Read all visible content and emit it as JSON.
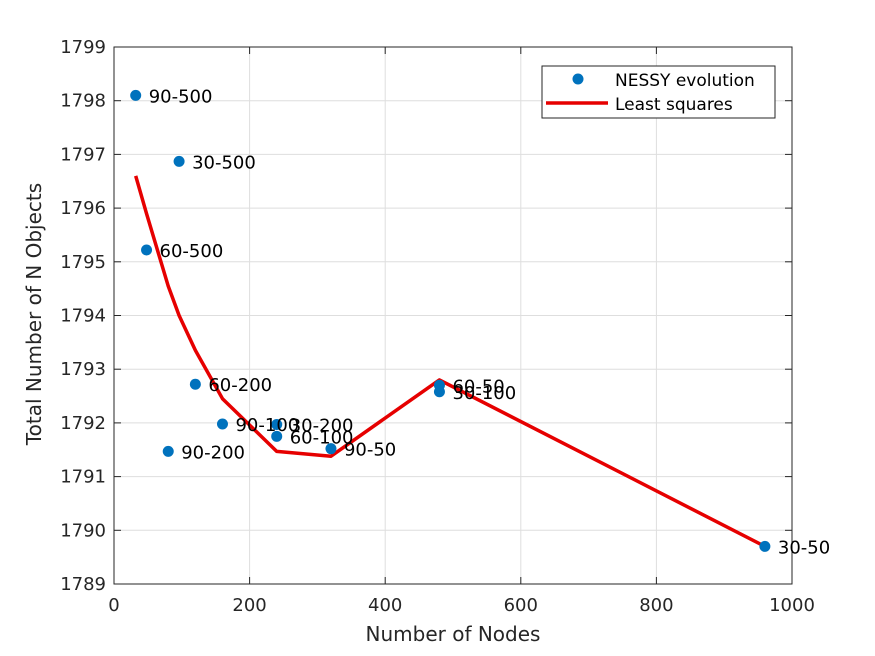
{
  "chart_data": {
    "type": "scatter",
    "title": "",
    "xlabel": "Number of Nodes",
    "ylabel": "Total Number of N Objects",
    "xlim": [
      0,
      1000
    ],
    "ylim": [
      1789,
      1799
    ],
    "xticks": [
      0,
      200,
      400,
      600,
      800,
      1000
    ],
    "yticks": [
      1789,
      1790,
      1791,
      1792,
      1793,
      1794,
      1795,
      1796,
      1797,
      1798,
      1799
    ],
    "grid": true,
    "legend_position": "top-right",
    "series": [
      {
        "name": "NESSY evolution",
        "kind": "markers",
        "color": "#0072BD",
        "points": [
          {
            "x": 32,
            "y": 1798.1,
            "label": "90-500"
          },
          {
            "x": 96,
            "y": 1796.87,
            "label": "30-500"
          },
          {
            "x": 48,
            "y": 1795.22,
            "label": "60-500"
          },
          {
            "x": 120,
            "y": 1792.72,
            "label": "60-200"
          },
          {
            "x": 160,
            "y": 1791.98,
            "label": "90-100"
          },
          {
            "x": 240,
            "y": 1791.97,
            "label": "30-200"
          },
          {
            "x": 240,
            "y": 1791.75,
            "label": "60-100"
          },
          {
            "x": 80,
            "y": 1791.47,
            "label": "90-200"
          },
          {
            "x": 320,
            "y": 1791.52,
            "label": "90-50"
          },
          {
            "x": 480,
            "y": 1792.7,
            "label": "60-50"
          },
          {
            "x": 480,
            "y": 1792.58,
            "label": "30-100"
          },
          {
            "x": 960,
            "y": 1789.7,
            "label": "30-50"
          }
        ]
      },
      {
        "name": "Least squares",
        "kind": "line",
        "color": "#E60000",
        "points": [
          {
            "x": 32,
            "y": 1796.6
          },
          {
            "x": 48,
            "y": 1795.9
          },
          {
            "x": 80,
            "y": 1794.55
          },
          {
            "x": 96,
            "y": 1794.0
          },
          {
            "x": 120,
            "y": 1793.35
          },
          {
            "x": 160,
            "y": 1792.45
          },
          {
            "x": 240,
            "y": 1791.47
          },
          {
            "x": 320,
            "y": 1791.38
          },
          {
            "x": 480,
            "y": 1792.8
          },
          {
            "x": 960,
            "y": 1789.7
          }
        ]
      }
    ]
  }
}
